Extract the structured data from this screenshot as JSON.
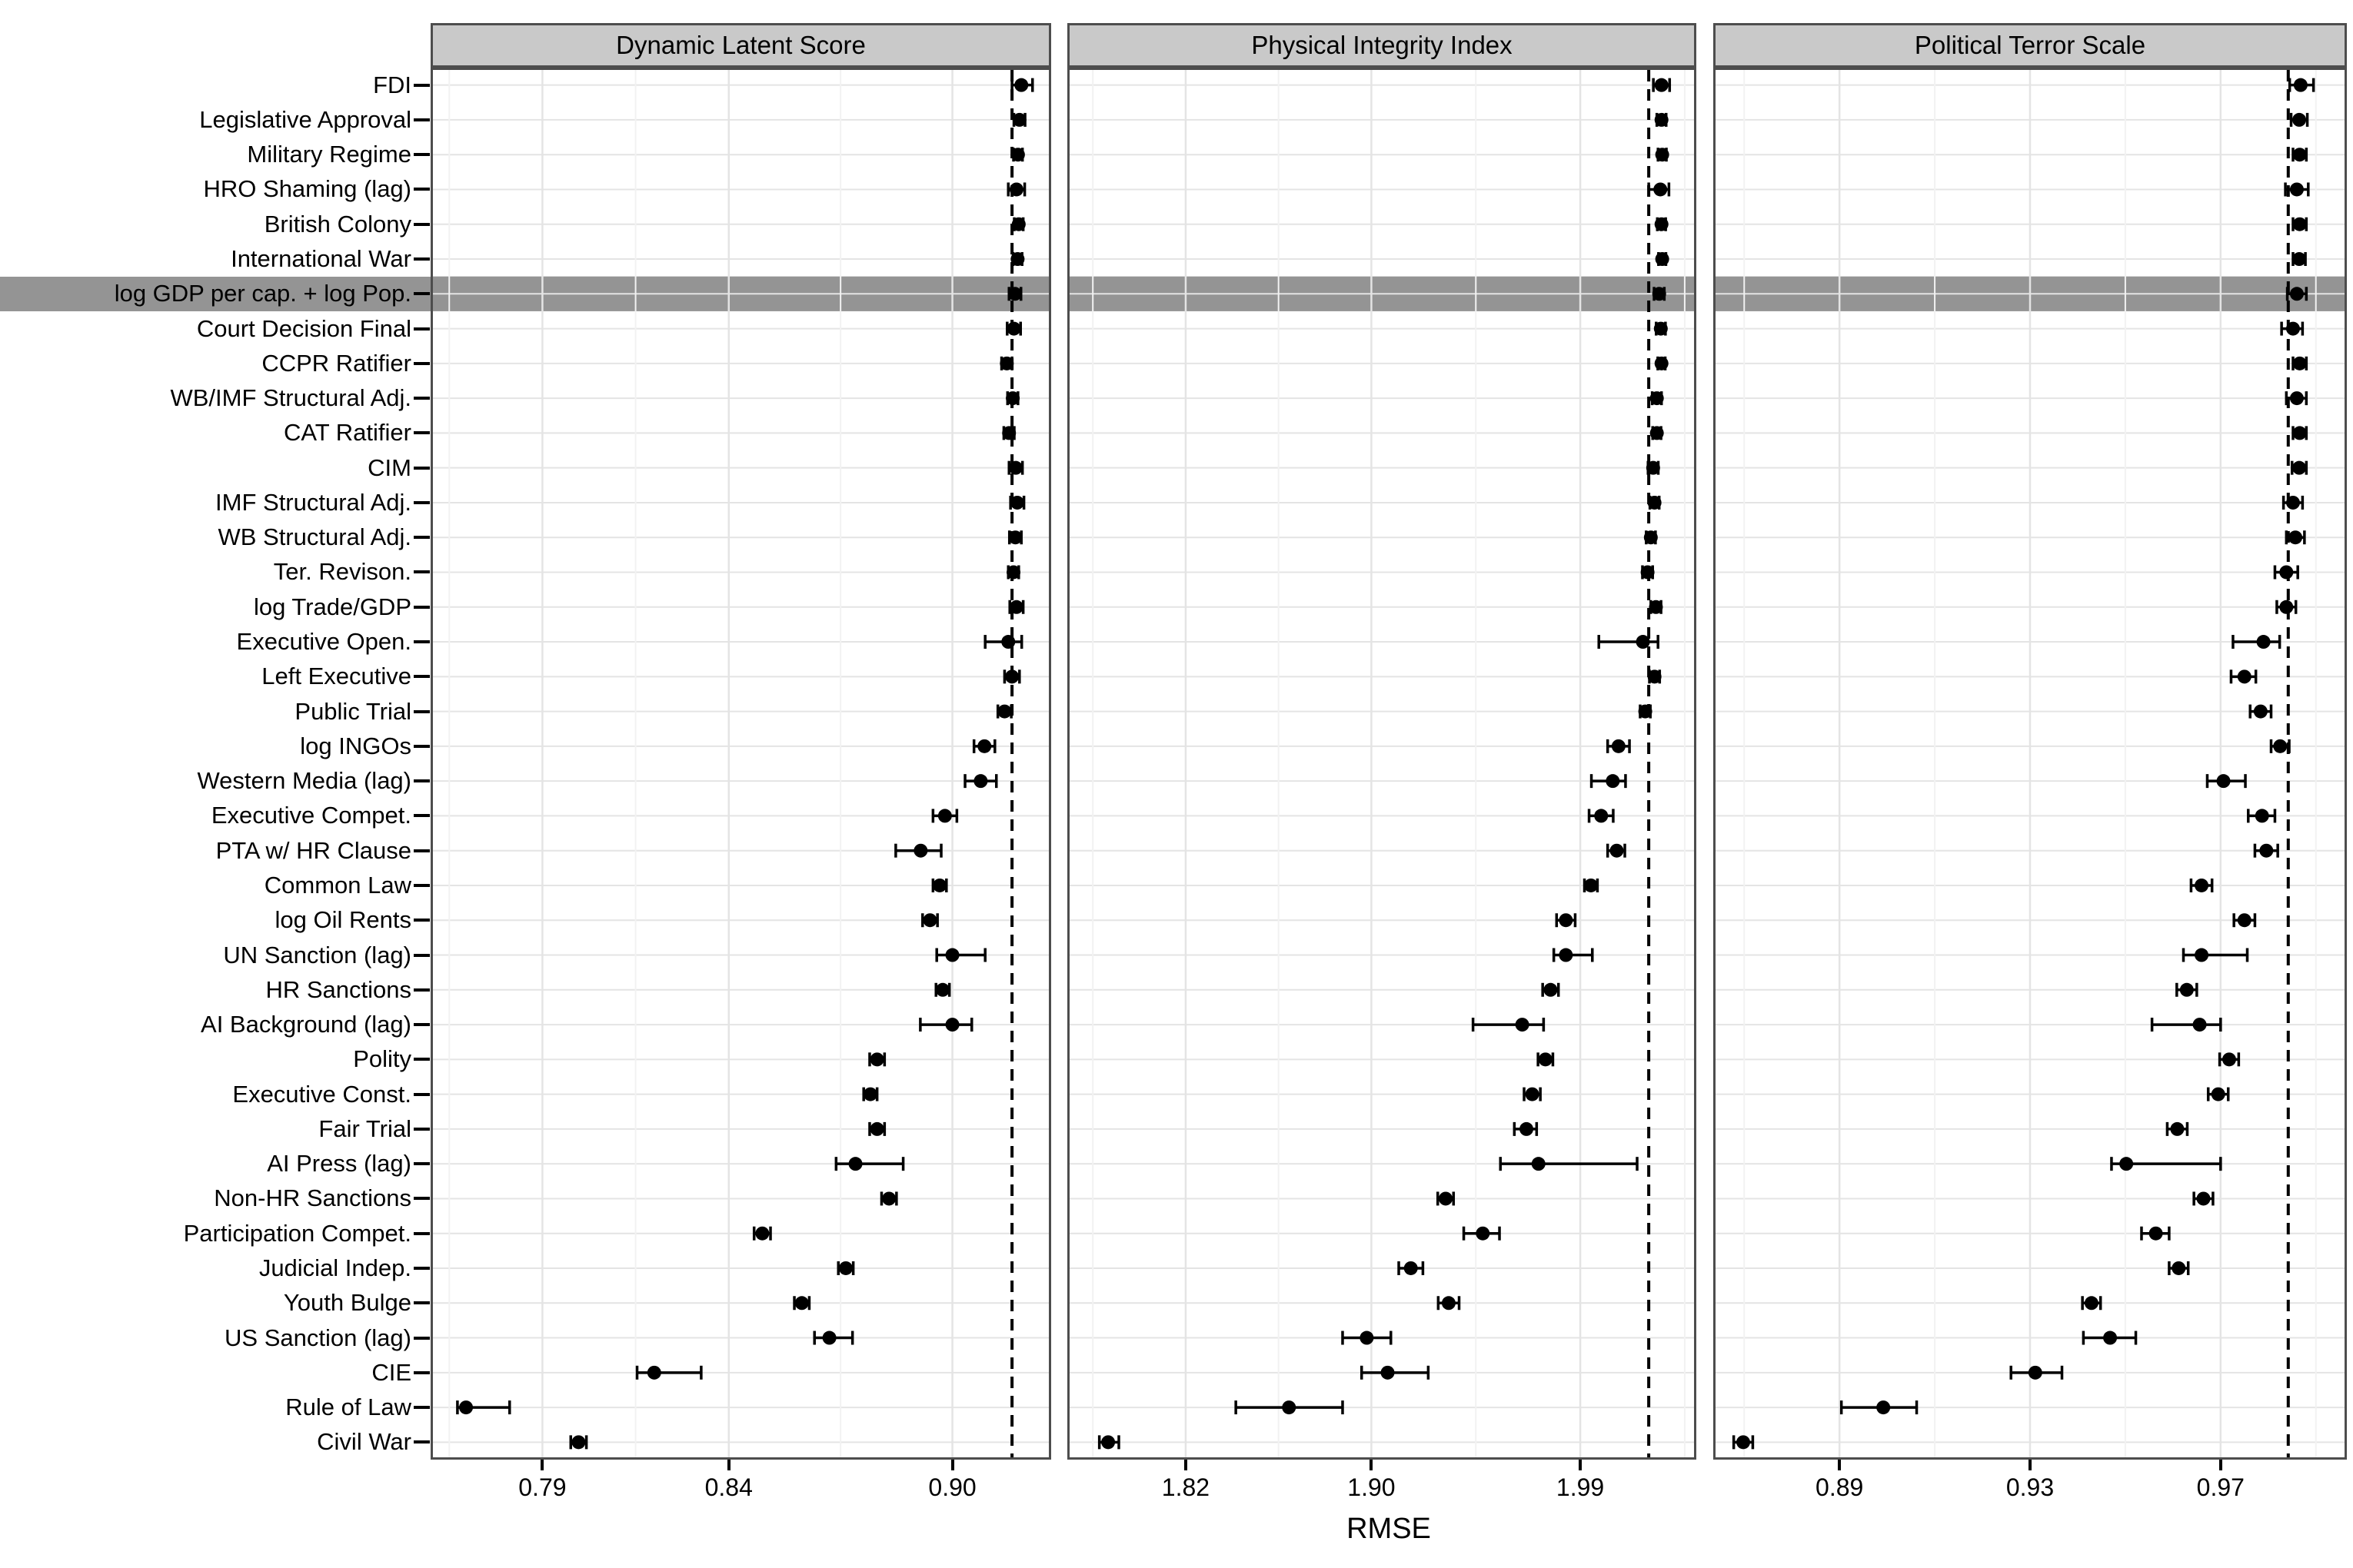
{
  "chart_data": {
    "type": "scatter",
    "subtype": "horizontal-dot-whisker-forest-plot",
    "orientation": "horizontal",
    "xlabel": "RMSE",
    "grid": true,
    "colors": {
      "point": "#000000",
      "baseline_dash": "#000000",
      "highlight_band": "#949494",
      "header_fill": "#c9c9c9",
      "panel_border": "#4d4d4d",
      "grid_major": "#e4e4e4",
      "grid_minor": "#f2f2f2",
      "text": "#000000",
      "background": "#ffffff"
    },
    "panels": [
      {
        "key": "dynamic_latent_score",
        "title": "Dynamic Latent Score",
        "xlim": [
          0.76,
          0.9265
        ],
        "ticks": [
          0.79,
          0.84,
          0.9
        ],
        "tick_labels": [
          "0.79",
          "0.84",
          "0.90"
        ],
        "minor_ticks": [
          0.765,
          0.815,
          0.87
        ],
        "baseline": 0.916
      },
      {
        "key": "physical_integrity_index",
        "title": "Physical Integrity Index",
        "xlim": [
          1.769,
          2.04
        ],
        "ticks": [
          1.82,
          1.9,
          1.99
        ],
        "tick_labels": [
          "1.82",
          "1.90",
          "1.99"
        ],
        "minor_ticks": [
          1.78,
          1.86,
          1.945,
          2.035
        ],
        "baseline": 2.0195
      },
      {
        "key": "political_terror_scale",
        "title": "Political Terror Scale",
        "xlim": [
          0.8635,
          0.9965
        ],
        "ticks": [
          0.89,
          0.93,
          0.97
        ],
        "tick_labels": [
          "0.89",
          "0.93",
          "0.97"
        ],
        "minor_ticks": [
          0.87,
          0.91,
          0.95,
          0.99
        ],
        "baseline": 0.9842
      }
    ],
    "rows": [
      {
        "label": "FDI",
        "dynamic_latent_score": [
          0.9185,
          0.916,
          0.9215
        ],
        "physical_integrity_index": [
          2.025,
          2.0215,
          2.0285
        ],
        "political_terror_scale": [
          0.9868,
          0.9845,
          0.9895
        ]
      },
      {
        "label": "Legislative Approval",
        "dynamic_latent_score": [
          0.918,
          0.9165,
          0.9195
        ],
        "physical_integrity_index": [
          2.025,
          2.023,
          2.027
        ],
        "political_terror_scale": [
          0.9865,
          0.9848,
          0.9882
        ]
      },
      {
        "label": "Military Regime",
        "dynamic_latent_score": [
          0.9176,
          0.9164,
          0.9188
        ],
        "physical_integrity_index": [
          2.0253,
          2.0235,
          2.0271
        ],
        "political_terror_scale": [
          0.9866,
          0.9852,
          0.988
        ]
      },
      {
        "label": "HRO Shaming (lag)",
        "dynamic_latent_score": [
          0.9172,
          0.915,
          0.9194
        ],
        "physical_integrity_index": [
          2.0245,
          2.0195,
          2.0282
        ],
        "political_terror_scale": [
          0.986,
          0.9836,
          0.9884
        ]
      },
      {
        "label": "British Colony",
        "dynamic_latent_score": [
          0.9178,
          0.9166,
          0.919
        ],
        "physical_integrity_index": [
          2.025,
          2.0232,
          2.0268
        ],
        "political_terror_scale": [
          0.9866,
          0.9852,
          0.988
        ]
      },
      {
        "label": "International War",
        "dynamic_latent_score": [
          0.9175,
          0.9163,
          0.9187
        ],
        "physical_integrity_index": [
          2.0253,
          2.0237,
          2.0269
        ],
        "political_terror_scale": [
          0.9865,
          0.9852,
          0.9878
        ]
      },
      {
        "label": "log GDP per cap. + log Pop.",
        "highlight": true,
        "dynamic_latent_score": [
          0.9168,
          0.9152,
          0.9184
        ],
        "physical_integrity_index": [
          2.024,
          2.0218,
          2.0262
        ],
        "political_terror_scale": [
          0.986,
          0.984,
          0.988
        ]
      },
      {
        "label": "Court Decision Final",
        "dynamic_latent_score": [
          0.9165,
          0.9147,
          0.9183
        ],
        "physical_integrity_index": [
          2.0247,
          2.0227,
          2.0267
        ],
        "political_terror_scale": [
          0.9852,
          0.9828,
          0.9872
        ]
      },
      {
        "label": "CCPR Ratifier",
        "dynamic_latent_score": [
          0.9146,
          0.9132,
          0.916
        ],
        "physical_integrity_index": [
          2.025,
          2.0234,
          2.0266
        ],
        "political_terror_scale": [
          0.9866,
          0.9852,
          0.988
        ]
      },
      {
        "label": "WB/IMF Structural Adj.",
        "dynamic_latent_score": [
          0.9162,
          0.9148,
          0.9176
        ],
        "physical_integrity_index": [
          2.023,
          2.021,
          2.025
        ],
        "political_terror_scale": [
          0.986,
          0.9838,
          0.988
        ]
      },
      {
        "label": "CAT Ratifier",
        "dynamic_latent_score": [
          0.9152,
          0.9138,
          0.9166
        ],
        "physical_integrity_index": [
          2.023,
          2.0212,
          2.0248
        ],
        "political_terror_scale": [
          0.9866,
          0.9852,
          0.988
        ]
      },
      {
        "label": "CIM",
        "dynamic_latent_score": [
          0.917,
          0.9152,
          0.9188
        ],
        "physical_integrity_index": [
          2.0214,
          2.0192,
          2.0236
        ],
        "political_terror_scale": [
          0.9865,
          0.985,
          0.988
        ]
      },
      {
        "label": "IMF Structural Adj.",
        "dynamic_latent_score": [
          0.9174,
          0.9156,
          0.9192
        ],
        "physical_integrity_index": [
          2.022,
          2.02,
          2.024
        ],
        "political_terror_scale": [
          0.9852,
          0.9832,
          0.9872
        ]
      },
      {
        "label": "WB Structural Adj.",
        "dynamic_latent_score": [
          0.9169,
          0.9153,
          0.9185
        ],
        "physical_integrity_index": [
          2.0204,
          2.0184,
          2.0224
        ],
        "political_terror_scale": [
          0.9857,
          0.9838,
          0.9876
        ]
      },
      {
        "label": "Ter. Revison.",
        "dynamic_latent_score": [
          0.9164,
          0.915,
          0.9178
        ],
        "physical_integrity_index": [
          2.019,
          2.0168,
          2.0212
        ],
        "political_terror_scale": [
          0.9838,
          0.9814,
          0.9862
        ]
      },
      {
        "label": "log Trade/GDP",
        "dynamic_latent_score": [
          0.9172,
          0.9154,
          0.919
        ],
        "physical_integrity_index": [
          2.0226,
          2.0204,
          2.0248
        ],
        "political_terror_scale": [
          0.9838,
          0.9818,
          0.9858
        ]
      },
      {
        "label": "Executive Open.",
        "dynamic_latent_score": [
          0.915,
          0.9088,
          0.9186
        ],
        "physical_integrity_index": [
          2.017,
          1.998,
          2.0235
        ],
        "political_terror_scale": [
          0.979,
          0.9726,
          0.9824
        ]
      },
      {
        "label": "Left Executive",
        "dynamic_latent_score": [
          0.916,
          0.914,
          0.918
        ],
        "physical_integrity_index": [
          2.022,
          2.0198,
          2.0242
        ],
        "political_terror_scale": [
          0.975,
          0.9722,
          0.9774
        ]
      },
      {
        "label": "Public Trial",
        "dynamic_latent_score": [
          0.914,
          0.9122,
          0.9158
        ],
        "physical_integrity_index": [
          2.018,
          2.0158,
          2.0202
        ],
        "political_terror_scale": [
          0.9784,
          0.9762,
          0.9806
        ]
      },
      {
        "label": "log INGOs",
        "dynamic_latent_score": [
          0.9086,
          0.9058,
          0.9114
        ],
        "physical_integrity_index": [
          2.0065,
          2.0018,
          2.0112
        ],
        "political_terror_scale": [
          0.9825,
          0.9806,
          0.9844
        ]
      },
      {
        "label": "Western Media (lag)",
        "dynamic_latent_score": [
          0.9076,
          0.9034,
          0.9118
        ],
        "physical_integrity_index": [
          2.004,
          1.9948,
          2.0095
        ],
        "political_terror_scale": [
          0.9706,
          0.9672,
          0.9752
        ]
      },
      {
        "label": "Executive Compet.",
        "dynamic_latent_score": [
          0.898,
          0.8948,
          0.9012
        ],
        "physical_integrity_index": [
          1.999,
          1.9938,
          2.0042
        ],
        "political_terror_scale": [
          0.9787,
          0.9758,
          0.9814
        ]
      },
      {
        "label": "PTA w/ HR Clause",
        "dynamic_latent_score": [
          0.8915,
          0.8848,
          0.897
        ],
        "physical_integrity_index": [
          2.0057,
          2.0018,
          2.0092
        ],
        "political_terror_scale": [
          0.9796,
          0.9772,
          0.982
        ]
      },
      {
        "label": "Common Law",
        "dynamic_latent_score": [
          0.8966,
          0.8948,
          0.8984
        ],
        "physical_integrity_index": [
          1.9946,
          1.9918,
          1.9974
        ],
        "political_terror_scale": [
          0.966,
          0.9638,
          0.9682
        ]
      },
      {
        "label": "log Oil Rents",
        "dynamic_latent_score": [
          0.894,
          0.892,
          0.896
        ],
        "physical_integrity_index": [
          1.9838,
          1.9798,
          1.9878
        ],
        "political_terror_scale": [
          0.975,
          0.9728,
          0.9772
        ]
      },
      {
        "label": "UN Sanction (lag)",
        "dynamic_latent_score": [
          0.9,
          0.8958,
          0.9088
        ],
        "physical_integrity_index": [
          1.9838,
          1.9786,
          1.9952
        ],
        "political_terror_scale": [
          0.966,
          0.9622,
          0.9756
        ]
      },
      {
        "label": "HR Sanctions",
        "dynamic_latent_score": [
          0.8974,
          0.8956,
          0.8992
        ],
        "physical_integrity_index": [
          1.9772,
          1.9738,
          1.9806
        ],
        "political_terror_scale": [
          0.9629,
          0.9608,
          0.965
        ]
      },
      {
        "label": "AI Background (lag)",
        "dynamic_latent_score": [
          0.9,
          0.8914,
          0.9052
        ],
        "physical_integrity_index": [
          1.965,
          1.9438,
          1.9742
        ],
        "political_terror_scale": [
          0.9656,
          0.9556,
          0.97
        ]
      },
      {
        "label": "Polity",
        "dynamic_latent_score": [
          0.8798,
          0.8778,
          0.8818
        ],
        "physical_integrity_index": [
          1.975,
          1.9718,
          1.9782
        ],
        "political_terror_scale": [
          0.9718,
          0.9698,
          0.9738
        ]
      },
      {
        "label": "Executive Const.",
        "dynamic_latent_score": [
          0.878,
          0.8762,
          0.8798
        ],
        "physical_integrity_index": [
          1.9693,
          1.9658,
          1.9728
        ],
        "political_terror_scale": [
          0.9695,
          0.9674,
          0.9716
        ]
      },
      {
        "label": "Fair Trial",
        "dynamic_latent_score": [
          0.8798,
          0.8778,
          0.8818
        ],
        "physical_integrity_index": [
          1.9668,
          1.9616,
          1.9712
        ],
        "political_terror_scale": [
          0.9609,
          0.9588,
          0.963
        ]
      },
      {
        "label": "AI Press (lag)",
        "dynamic_latent_score": [
          0.874,
          0.8688,
          0.8868
        ],
        "physical_integrity_index": [
          1.972,
          1.9556,
          2.0145
        ],
        "political_terror_scale": [
          0.9502,
          0.9471,
          0.97
        ]
      },
      {
        "label": "Non-HR Sanctions",
        "dynamic_latent_score": [
          0.883,
          0.881,
          0.885
        ],
        "physical_integrity_index": [
          1.932,
          1.9286,
          1.9354
        ],
        "political_terror_scale": [
          0.9664,
          0.9644,
          0.9684
        ]
      },
      {
        "label": "Participation Compet.",
        "dynamic_latent_score": [
          0.849,
          0.8468,
          0.8512
        ],
        "physical_integrity_index": [
          1.948,
          1.9398,
          1.9552
        ],
        "political_terror_scale": [
          0.9564,
          0.9534,
          0.9592
        ]
      },
      {
        "label": "Judicial Indep.",
        "dynamic_latent_score": [
          0.8714,
          0.8694,
          0.8734
        ],
        "physical_integrity_index": [
          1.917,
          1.9118,
          1.9222
        ],
        "political_terror_scale": [
          0.9612,
          0.9592,
          0.9632
        ]
      },
      {
        "label": "Youth Bulge",
        "dynamic_latent_score": [
          0.8596,
          0.8576,
          0.8616
        ],
        "physical_integrity_index": [
          1.9333,
          1.9288,
          1.9378
        ],
        "political_terror_scale": [
          0.9429,
          0.941,
          0.9448
        ]
      },
      {
        "label": "US Sanction (lag)",
        "dynamic_latent_score": [
          0.867,
          0.863,
          0.8732
        ],
        "physical_integrity_index": [
          1.898,
          1.8876,
          1.9084
        ],
        "political_terror_scale": [
          0.9468,
          0.9412,
          0.9522
        ]
      },
      {
        "label": "CIE",
        "dynamic_latent_score": [
          0.82,
          0.8154,
          0.8326
        ],
        "physical_integrity_index": [
          1.907,
          1.8958,
          1.9245
        ],
        "political_terror_scale": [
          0.9311,
          0.926,
          0.9367
        ]
      },
      {
        "label": "Rule of Law",
        "dynamic_latent_score": [
          0.7695,
          0.7672,
          0.7812
        ],
        "physical_integrity_index": [
          1.8645,
          1.8416,
          1.8876
        ],
        "political_terror_scale": [
          0.8992,
          0.8904,
          0.9062
        ]
      },
      {
        "label": "Civil War",
        "dynamic_latent_score": [
          0.7997,
          0.7976,
          0.8018
        ],
        "physical_integrity_index": [
          1.7866,
          1.7828,
          1.7912
        ],
        "political_terror_scale": [
          0.8698,
          0.8678,
          0.8718
        ]
      }
    ]
  }
}
